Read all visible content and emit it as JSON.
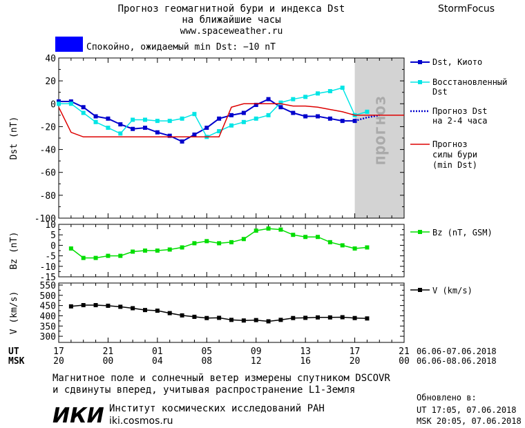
{
  "header": {
    "title_line1": "Прогноз геомагнитной бури и индекса Dst",
    "title_line2": "на ближайшие часы",
    "url": "www.spaceweather.ru",
    "brand": "StormFocus",
    "status_text": "Спокойно, ожидаемый min Dst: −10 nT",
    "status_color": "#0000ff"
  },
  "forecast_label": "прогноз",
  "legend": {
    "dst_kyoto": "Dst, Киото",
    "reconstructed_1": "Восстановленный",
    "reconstructed_2": "Dst",
    "forecast_dst_1": "Прогноз Dst",
    "forecast_dst_2": "на 2-4 часа",
    "storm_1": "Прогноз",
    "storm_2": "силы бури",
    "storm_3": "(min Dst)",
    "bz": "Bz (nT, GSM)",
    "v": "V (km/s)"
  },
  "time_axis": {
    "ut_label": "UT",
    "msk_label": "MSK",
    "ut_ticks": [
      "17",
      "21",
      "01",
      "05",
      "09",
      "13",
      "17",
      "21"
    ],
    "msk_ticks": [
      "20",
      "00",
      "04",
      "08",
      "12",
      "16",
      "20",
      "00"
    ],
    "ut_range": "06.06-07.06.2018",
    "msk_range": "06.06-08.06.2018"
  },
  "footer": {
    "line1": "Магнитное поле и солнечный ветер измерены спутником DSCOVR",
    "line2": "и сдвинуты вперед, учитывая распространение L1-Земля",
    "logo": "ИКИ",
    "institute": "Институт космических исследований РАН",
    "site": "iki.cosmos.ru",
    "updated_label": "Обновлено в:",
    "updated_ut": "UT  17:05, 07.06.2018",
    "updated_msk": "MSK 20:05, 07.06.2018"
  },
  "chart_data": [
    {
      "type": "line",
      "panel": "dst",
      "ylabel": "Dst (nT)",
      "x_unit": "hours from 17 UT 06.06.2018",
      "xlim": [
        0,
        28
      ],
      "ylim": [
        -100,
        40
      ],
      "yticks": [
        -100,
        -80,
        -60,
        -40,
        -20,
        0,
        20,
        40
      ],
      "forecast_span": [
        24,
        28
      ],
      "series": [
        {
          "name": "Dst, Киото",
          "color": "#0000cc",
          "x": [
            0,
            1,
            2,
            3,
            4,
            5,
            6,
            7,
            8,
            9,
            10,
            11,
            12,
            13,
            14,
            15,
            16,
            17,
            18,
            19,
            20,
            21,
            22,
            23,
            24
          ],
          "values": [
            2,
            2,
            -3,
            -11,
            -13,
            -18,
            -22,
            -21,
            -25,
            -28,
            -33,
            -27,
            -21,
            -13,
            -10,
            -8,
            -1,
            4,
            -3,
            -8,
            -11,
            -11,
            -13,
            -15,
            -15
          ]
        },
        {
          "name": "Восстановленный Dst",
          "color": "#00e5e5",
          "x": [
            0,
            1,
            2,
            3,
            4,
            5,
            6,
            7,
            8,
            9,
            10,
            11,
            12,
            13,
            14,
            15,
            16,
            17,
            18,
            19,
            20,
            21,
            22,
            23,
            24,
            25
          ],
          "values": [
            0,
            0,
            -8,
            -16,
            -21,
            -26,
            -14,
            -14,
            -15,
            -15,
            -13,
            -9,
            -29,
            -24,
            -19,
            -16,
            -13,
            -10,
            1,
            4,
            6,
            9,
            11,
            14,
            -10,
            -7
          ]
        },
        {
          "name": "Прогноз Dst на 2-4 часа",
          "color": "#0000cc",
          "x": [
            24,
            25,
            26
          ],
          "values": [
            -15,
            -12,
            -10
          ]
        },
        {
          "name": "Прогноз силы бури (min Dst)",
          "color": "#dd0000",
          "x": [
            0,
            1,
            2,
            3,
            4,
            5,
            6,
            7,
            8,
            9,
            10,
            11,
            12,
            13,
            14,
            15,
            16,
            17,
            18,
            19,
            20,
            21,
            22,
            23,
            24,
            25,
            26,
            27,
            28
          ],
          "values": [
            -3,
            -25,
            -29,
            -29,
            -29,
            -29,
            -29,
            -29,
            -29,
            -29,
            -29,
            -29,
            -29,
            -29,
            -3,
            0,
            0,
            0,
            0,
            -2,
            -2,
            -3,
            -5,
            -7,
            -10,
            -10,
            -10,
            -10,
            -10
          ]
        }
      ]
    },
    {
      "type": "line",
      "panel": "bz",
      "ylabel": "Bz (nT)",
      "xlim": [
        0,
        28
      ],
      "ylim": [
        -15,
        10
      ],
      "yticks": [
        -15,
        -10,
        -5,
        0,
        5,
        10
      ],
      "series": [
        {
          "name": "Bz (nT, GSM)",
          "color": "#00dd00",
          "x": [
            1,
            2,
            3,
            4,
            5,
            6,
            7,
            8,
            9,
            10,
            11,
            12,
            13,
            14,
            15,
            16,
            17,
            18,
            19,
            20,
            21,
            22,
            23,
            24,
            25
          ],
          "values": [
            -1.5,
            -6,
            -6,
            -5,
            -5,
            -3,
            -2.5,
            -2.5,
            -2,
            -1,
            1,
            2,
            1,
            1.5,
            3,
            7,
            8,
            7.5,
            5,
            4,
            4,
            1.5,
            0,
            -1.5,
            -1
          ]
        }
      ]
    },
    {
      "type": "line",
      "panel": "v",
      "ylabel": "V (km/s)",
      "xlim": [
        0,
        28
      ],
      "ylim": [
        270,
        560
      ],
      "yticks": [
        300,
        350,
        400,
        450,
        500,
        550
      ],
      "series": [
        {
          "name": "V (km/s)",
          "color": "#000000",
          "x": [
            1,
            2,
            3,
            4,
            5,
            6,
            7,
            8,
            9,
            10,
            11,
            12,
            13,
            14,
            15,
            16,
            17,
            18,
            19,
            20,
            21,
            22,
            23,
            24,
            25
          ],
          "values": [
            446,
            452,
            452,
            449,
            444,
            437,
            428,
            425,
            413,
            402,
            395,
            389,
            390,
            380,
            377,
            379,
            373,
            380,
            389,
            390,
            392,
            392,
            393,
            389,
            387
          ]
        }
      ]
    }
  ]
}
